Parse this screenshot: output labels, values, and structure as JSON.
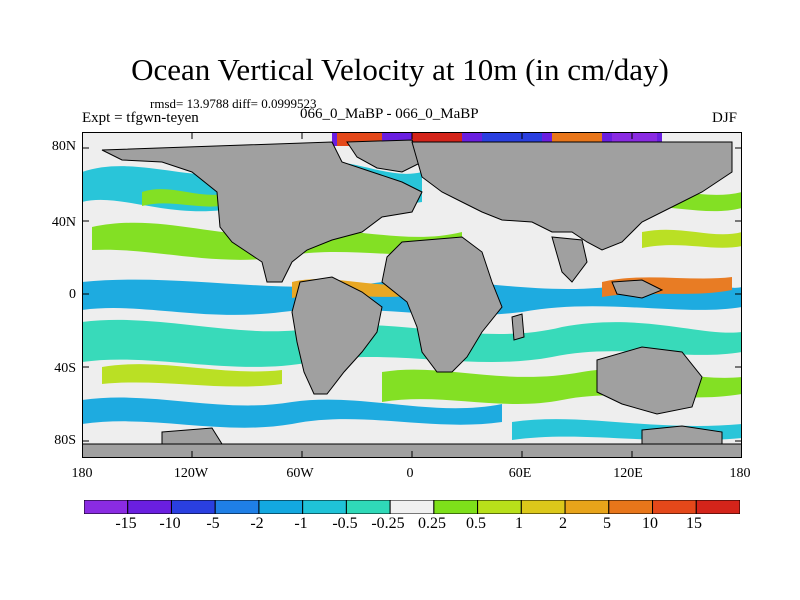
{
  "header": {
    "title": "Ocean Vertical Velocity at 10m (in cm/day)",
    "stats": "rmsd= 13.9788 diff= 0.0999523",
    "expt": "Expt = tfgwn-teyen",
    "case": "066_0_MaBP - 066_0_MaBP",
    "season": "DJF"
  },
  "axes": {
    "y_labels": [
      "80N",
      "40N",
      "0",
      "40S",
      "80S"
    ],
    "x_labels": [
      "180",
      "120W",
      "60W",
      "0",
      "60E",
      "120E",
      "180"
    ]
  },
  "colorbar": {
    "labels": [
      "-15",
      "-10",
      "-5",
      "-2",
      "-1",
      "-0.5",
      "-0.25",
      "0.25",
      "0.5",
      "1",
      "2",
      "5",
      "10",
      "15"
    ],
    "colors": [
      "#8a2be2",
      "#6a1fe0",
      "#2a3fe0",
      "#1f7fe6",
      "#13a8e0",
      "#1fc3d8",
      "#2fd9b8",
      "#f0f0f0",
      "#7ee01a",
      "#b8e01a",
      "#dcc81a",
      "#e8a41a",
      "#e8761a",
      "#e4481a",
      "#d4241a"
    ]
  },
  "palette": {
    "land": "#a0a0a0",
    "ocean_neutral": "#eeeeee",
    "coast": "#000000"
  }
}
